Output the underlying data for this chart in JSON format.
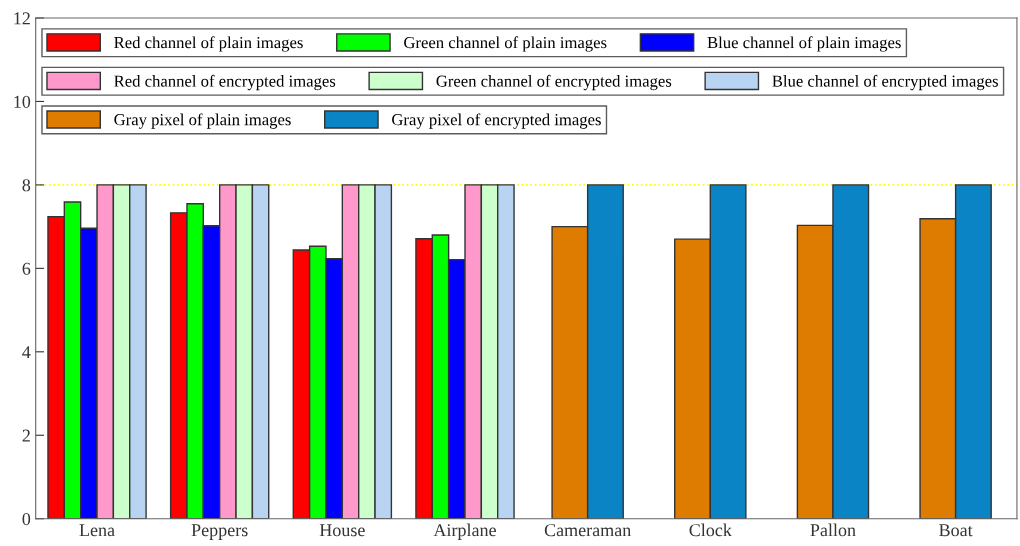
{
  "chart_data": {
    "type": "bar",
    "categories": [
      "Lena",
      "Peppers",
      "House",
      "Airplane",
      "Cameraman",
      "Clock",
      "Pallon",
      "Boat"
    ],
    "series": [
      {
        "name": "Red channel of plain images",
        "color": "#ff0000",
        "values": [
          7.24,
          7.33,
          6.44,
          6.71,
          null,
          null,
          null,
          null
        ]
      },
      {
        "name": "Green channel of plain images",
        "color": "#00ff00",
        "values": [
          7.59,
          7.55,
          6.53,
          6.8,
          null,
          null,
          null,
          null
        ]
      },
      {
        "name": "Blue channel of plain images",
        "color": "#0000ff",
        "values": [
          6.96,
          7.02,
          6.23,
          6.21,
          null,
          null,
          null,
          null
        ]
      },
      {
        "name": "Red channel of encrypted images",
        "color": "#ff99cc",
        "values": [
          8.0,
          8.0,
          8.0,
          8.0,
          null,
          null,
          null,
          null
        ]
      },
      {
        "name": "Green channel of encrypted images",
        "color": "#ccffcc",
        "values": [
          8.0,
          8.0,
          8.0,
          8.0,
          null,
          null,
          null,
          null
        ]
      },
      {
        "name": "Blue channel of encrypted images",
        "color": "#b8d4f2",
        "values": [
          8.0,
          8.0,
          8.0,
          8.0,
          null,
          null,
          null,
          null
        ]
      },
      {
        "name": "Gray pixel of plain images",
        "color": "#dd7c00",
        "values": [
          null,
          null,
          null,
          null,
          7.0,
          6.7,
          7.03,
          7.19
        ]
      },
      {
        "name": "Gray pixel of encrypted images",
        "color": "#0b84c6",
        "values": [
          null,
          null,
          null,
          null,
          8.0,
          8.0,
          8.0,
          8.0
        ]
      }
    ],
    "ylim": [
      0,
      12
    ],
    "yticks": [
      0,
      2,
      4,
      6,
      8,
      10,
      12
    ],
    "ref_lines": [
      {
        "axis": "y",
        "value": 8,
        "color": "#ffff00",
        "line_style": "dotted"
      }
    ],
    "legend": "top left",
    "grid": false
  }
}
